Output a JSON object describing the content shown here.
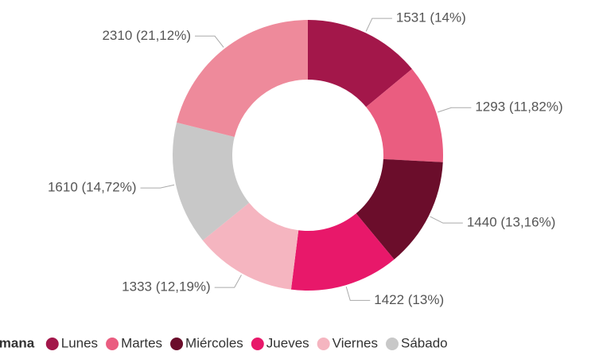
{
  "chart_data": {
    "type": "donut",
    "legend_title": "Semana",
    "categories": [
      "Lunes",
      "Martes",
      "Miércoles",
      "Jueves",
      "Viernes",
      "Sábado",
      null
    ],
    "values": [
      1531,
      1293,
      1440,
      1422,
      1333,
      1610,
      2310
    ],
    "value_labels": [
      "1531 (14%)",
      "1293 (11,82%)",
      "1440 (13,16%)",
      "1422 (13%)",
      "1333 (12,19%)",
      "1610 (14,72%)",
      "2310 (21,12%)"
    ],
    "colors": [
      "#a3174a",
      "#ea5d80",
      "#6b0d2b",
      "#e8186a",
      "#f5b5c0",
      "#c8c8c8",
      "#ee8a9b"
    ],
    "legend": "bottom"
  }
}
